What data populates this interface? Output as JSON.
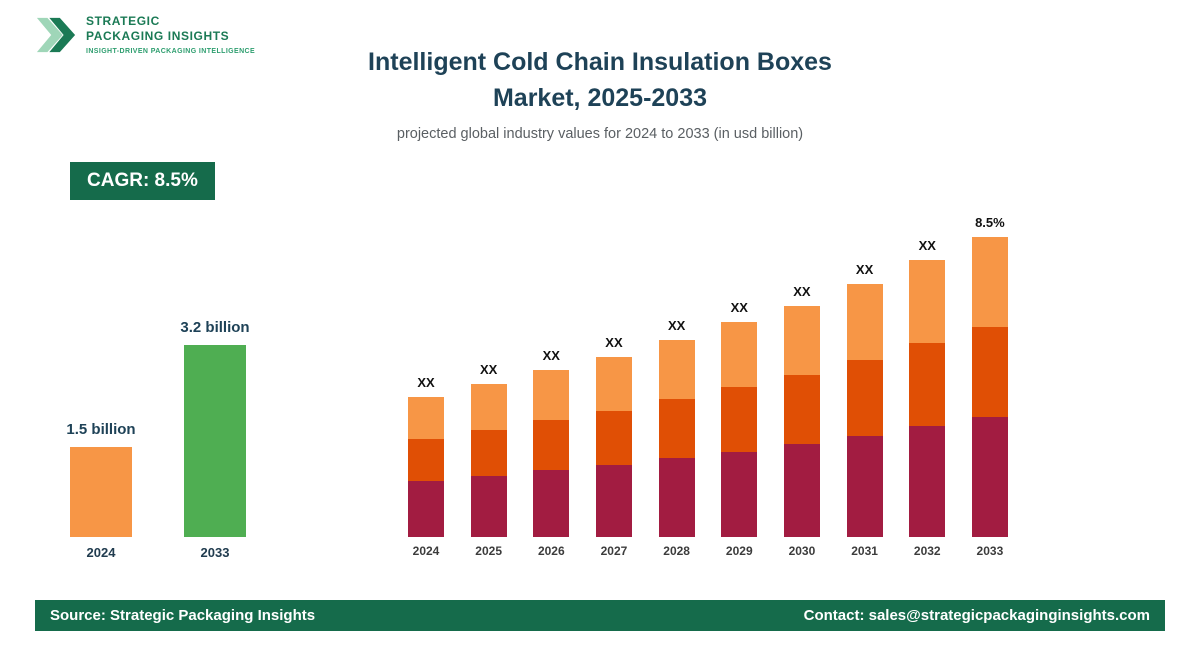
{
  "logo": {
    "line1": "STRATEGIC",
    "line2": "PACKAGING INSIGHTS",
    "tagline": "INSIGHT-DRIVEN PACKAGING INTELLIGENCE"
  },
  "header": {
    "title_line1": "Intelligent Cold Chain Insulation Boxes",
    "title_line2": "Market, 2025-2033",
    "subtitle": "projected global industry values for 2024 to 2033 (in usd billion)"
  },
  "cagr_badge": "CAGR: 8.5%",
  "mini_chart": {
    "type": "bar",
    "categories": [
      "2024",
      "2033"
    ],
    "values": [
      1.5,
      3.2
    ],
    "value_labels": [
      "1.5 billion",
      "3.2 billion"
    ],
    "bar_colors": [
      "#f79646",
      "#4fae52"
    ],
    "unit": "usd billion"
  },
  "chart_data": {
    "type": "bar",
    "stacked": true,
    "title": "Intelligent Cold Chain Insulation Boxes Market, 2025-2033",
    "unit": "usd billion",
    "categories": [
      "2024",
      "2025",
      "2026",
      "2027",
      "2028",
      "2029",
      "2030",
      "2031",
      "2032",
      "2033"
    ],
    "bar_labels": [
      "XX",
      "XX",
      "XX",
      "XX",
      "XX",
      "XX",
      "XX",
      "XX",
      "XX",
      "8.5%"
    ],
    "series": [
      {
        "name": "bottom-segment",
        "color": "#a21c41",
        "values": [
          0.6,
          0.65,
          0.71,
          0.77,
          0.84,
          0.91,
          0.99,
          1.08,
          1.18,
          1.28
        ]
      },
      {
        "name": "middle-segment",
        "color": "#e04f05",
        "values": [
          0.45,
          0.49,
          0.53,
          0.58,
          0.63,
          0.69,
          0.74,
          0.81,
          0.88,
          0.96
        ]
      },
      {
        "name": "top-segment",
        "color": "#f79646",
        "values": [
          0.45,
          0.49,
          0.53,
          0.58,
          0.63,
          0.69,
          0.74,
          0.81,
          0.88,
          0.96
        ]
      }
    ],
    "totals_estimated": [
      1.5,
      1.63,
      1.77,
      1.93,
      2.1,
      2.29,
      2.47,
      2.7,
      2.94,
      3.2
    ],
    "ylim": [
      0,
      3.6
    ],
    "grid": false,
    "axes_visible": false,
    "legend": "none",
    "cagr": "8.5%"
  },
  "footer": {
    "source": "Source: Strategic Packaging Insights",
    "contact": "Contact: sales@strategicpackaginginsights.com"
  },
  "colors": {
    "brand_green": "#156b4b",
    "logo_green": "#1b7a55",
    "logo_light_green": "#9fd6b8",
    "title_navy": "#1e4257",
    "maroon": "#a21c41",
    "dark_orange": "#e04f05",
    "light_orange": "#f79646",
    "mini_green": "#4fae52"
  }
}
